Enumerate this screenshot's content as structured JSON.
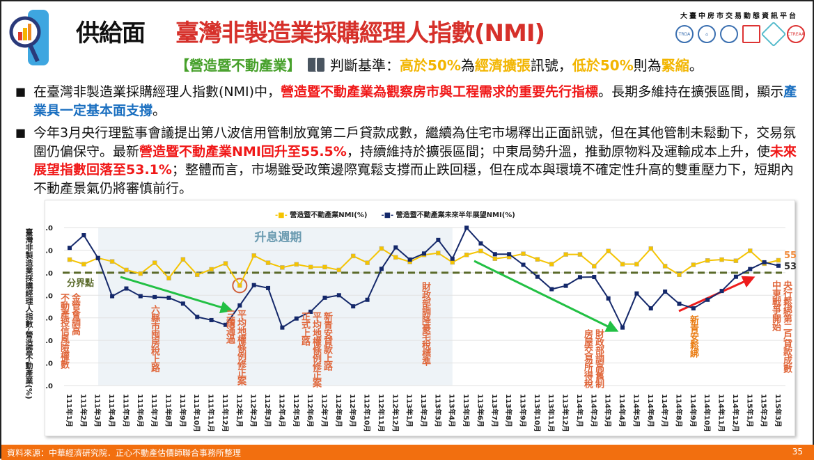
{
  "header": {
    "section": "供給面",
    "title": "臺灣非製造業採購經理人指數(NMI)",
    "platform": "大臺中房市交易動態資訊平台",
    "partners": [
      "TRDA",
      "",
      "",
      "",
      "",
      "CTREAA"
    ]
  },
  "subheader": {
    "category": "【營造暨不動產業】",
    "criteria_label": "判斷基準：",
    "p1": "高於50%",
    "p2": "為",
    "p3": "經濟擴張",
    "p4": "訊號，",
    "p5": "低於50%",
    "p6": "則為",
    "p7": "緊縮",
    "p8": "。"
  },
  "bullets": [
    {
      "segments": [
        {
          "t": "在臺灣非製造業採購經理人指數(NMI)中，",
          "c": ""
        },
        {
          "t": "營造暨不動產業為觀察房市與工程需求的重要先行指標",
          "c": "red"
        },
        {
          "t": "。長期多維持在擴張區間，顯示",
          "c": ""
        },
        {
          "t": "產業具一定基本面支撐",
          "c": "blue"
        },
        {
          "t": "。",
          "c": ""
        }
      ]
    },
    {
      "segments": [
        {
          "t": "今年3月央行理監事會議提出第八波信用管制放寬第二戶貸款成數，繼續為住宅市場釋出正面訊號，但在其他管制未鬆動下，交易氛圍仍偏保守。最新",
          "c": ""
        },
        {
          "t": "營造暨不動產業NMI回升至55.5%",
          "c": "red"
        },
        {
          "t": "，持續維持於擴張區間；中東局勢升溫，推動原物料及運輸成本上升，使",
          "c": ""
        },
        {
          "t": "未來展望指數回落至53.1%",
          "c": "red"
        },
        {
          "t": "；整體而言，市場雖受政策邊際寬鬆支撐而止跌回穩，但在成本與環境不確定性升高的雙重壓力下，短期內不動產景氣仍將審慎前行。",
          "c": ""
        }
      ]
    }
  ],
  "chart_data": {
    "type": "line",
    "ylabel": "臺灣非製造業採購經理人指數-營造暨不動產業(%)",
    "ylim": [
      0,
      70
    ],
    "yticks": [
      "0.0",
      "10.0",
      "20.0",
      "30.0",
      "40.0",
      "50.0",
      "60.0",
      "70.0"
    ],
    "threshold": 50,
    "threshold_label": "分界點",
    "shaded_label": "升息週期",
    "shaded_range": [
      "111年4月",
      "113年4月"
    ],
    "categories": [
      "111年1月",
      "111年2月",
      "111年3月",
      "111年4月",
      "111年5月",
      "111年6月",
      "111年7月",
      "111年8月",
      "111年9月",
      "111年10月",
      "111年11月",
      "111年12月",
      "112年1月",
      "112年2月",
      "112年3月",
      "112年4月",
      "112年5月",
      "112年6月",
      "112年7月",
      "112年8月",
      "112年9月",
      "112年10月",
      "112年11月",
      "112年12月",
      "113年1月",
      "113年2月",
      "113年3月",
      "113年4月",
      "113年5月",
      "113年6月",
      "113年7月",
      "113年8月",
      "113年9月",
      "113年10月",
      "113年11月",
      "113年12月",
      "114年1月",
      "114年2月",
      "114年3月",
      "114年4月",
      "114年5月",
      "114年6月",
      "114年7月",
      "114年8月",
      "114年9月",
      "114年10月",
      "114年11月",
      "114年12月",
      "115年1月",
      "115年2月",
      "115年3月"
    ],
    "series": [
      {
        "name": "營造暨不動產業NMI(%)",
        "color": "#f5c400",
        "values": [
          55.8,
          53.8,
          56.5,
          55.0,
          51.2,
          49.6,
          54.4,
          47.6,
          55.9,
          49.1,
          51.5,
          54.1,
          44.3,
          57.6,
          54.4,
          52.3,
          53.7,
          52.5,
          52.5,
          51.2,
          57.4,
          54.4,
          60.7,
          56.8,
          54.8,
          57.9,
          58.7,
          54.6,
          57.9,
          59.6,
          56.2,
          57.0,
          58.4,
          55.9,
          53.8,
          58.1,
          58.1,
          52.9,
          59.6,
          53.8,
          53.8,
          60.7,
          52.9,
          49.1,
          53.5,
          55.4,
          55.8,
          55.3,
          59.7,
          54.0,
          55.5
        ],
        "end_label": "55.5"
      },
      {
        "name": "營造暨不動產業未來半年展望NMI(%)",
        "color": "#14286a",
        "values": [
          61.0,
          66.6,
          56.5,
          39.6,
          43.0,
          39.6,
          39.2,
          38.9,
          36.3,
          30.4,
          29.0,
          26.9,
          35.5,
          44.5,
          43.2,
          25.7,
          29.7,
          32.7,
          38.9,
          40.0,
          35.1,
          38.0,
          51.7,
          61.2,
          55.8,
          58.5,
          64.5,
          56.2,
          69.9,
          63.0,
          58.2,
          58.2,
          53.5,
          48.2,
          42.7,
          44.2,
          48.0,
          48.1,
          38.6,
          25.7,
          40.8,
          34.2,
          41.6,
          36.2,
          34.2,
          38.0,
          41.9,
          48.2,
          51.6,
          54.6,
          53.1
        ],
        "end_label": "53.1"
      }
    ],
    "annotations": [
      {
        "lines": [
          "金管會調高",
          "不動產授信風險權數"
        ],
        "color": "#e0663a"
      },
      {
        "lines": [
          "六縣市囤房稅上路"
        ],
        "color": "#e0663a"
      },
      {
        "lines": [
          "平均地權條例修正案",
          "三讀通過"
        ],
        "color": "#e0663a"
      },
      {
        "lines": [
          "新青安貸款上路",
          "平均地權條例修正案",
          "正式上路"
        ],
        "color": "#e0663a"
      },
      {
        "lines": [
          "財政部調降豪宅稅標準"
        ],
        "color": "#e0663a"
      },
      {
        "lines": [
          "財政部調高舊制",
          "房屋交易所得稅"
        ],
        "color": "#e0663a"
      },
      {
        "lines": [
          "新青安鬆綁"
        ],
        "color": "#ea7d14"
      },
      {
        "lines": [
          "央行鬆綁第二戶貸款成數",
          "中東戰爭開始"
        ],
        "color": "#e0663a"
      }
    ]
  },
  "footer": {
    "source": "資料來源：中華經濟研究院．正心不動產估價師聯合事務所整理",
    "page": "35"
  }
}
